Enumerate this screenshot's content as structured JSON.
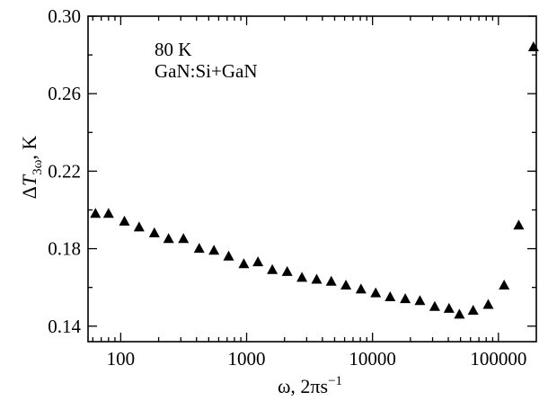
{
  "chart_data": {
    "type": "scatter",
    "title": "",
    "xlabel": {
      "base": "ω, 2πs",
      "sup": "−1"
    },
    "ylabel": {
      "delta": "Δ",
      "italic": "T",
      "sub": "3ω",
      "unit": ", K"
    },
    "x_scale": "log",
    "xlim": [
      55,
      200000
    ],
    "ylim": [
      0.132,
      0.3
    ],
    "x_ticks": [
      {
        "value": 100,
        "label": "100"
      },
      {
        "value": 1000,
        "label": "1000"
      },
      {
        "value": 10000,
        "label": "10000"
      },
      {
        "value": 100000,
        "label": "100000"
      }
    ],
    "y_ticks": [
      {
        "value": 0.14,
        "label": "0.14"
      },
      {
        "value": 0.18,
        "label": "0.18"
      },
      {
        "value": 0.22,
        "label": "0.22"
      },
      {
        "value": 0.26,
        "label": "0.26"
      },
      {
        "value": 0.3,
        "label": "0.30"
      }
    ],
    "y_minor_step": 0.02,
    "grid": false,
    "annotations": [
      "80 K",
      "GaN:Si+GaN"
    ],
    "marker": "triangle",
    "marker_color": "#000000",
    "series": [
      {
        "x": [
          63,
          80,
          107,
          140,
          185,
          240,
          315,
          420,
          550,
          720,
          950,
          1230,
          1600,
          2100,
          2750,
          3600,
          4700,
          6150,
          8100,
          10600,
          13800,
          18200,
          23800,
          31200,
          40500,
          49000,
          63000,
          83000,
          111000,
          145000,
          190000
        ],
        "y": [
          0.198,
          0.198,
          0.194,
          0.191,
          0.188,
          0.185,
          0.185,
          0.18,
          0.179,
          0.176,
          0.172,
          0.173,
          0.169,
          0.168,
          0.165,
          0.164,
          0.163,
          0.161,
          0.159,
          0.157,
          0.155,
          0.154,
          0.153,
          0.15,
          0.149,
          0.146,
          0.148,
          0.151,
          0.161,
          0.192,
          0.284
        ]
      }
    ]
  }
}
